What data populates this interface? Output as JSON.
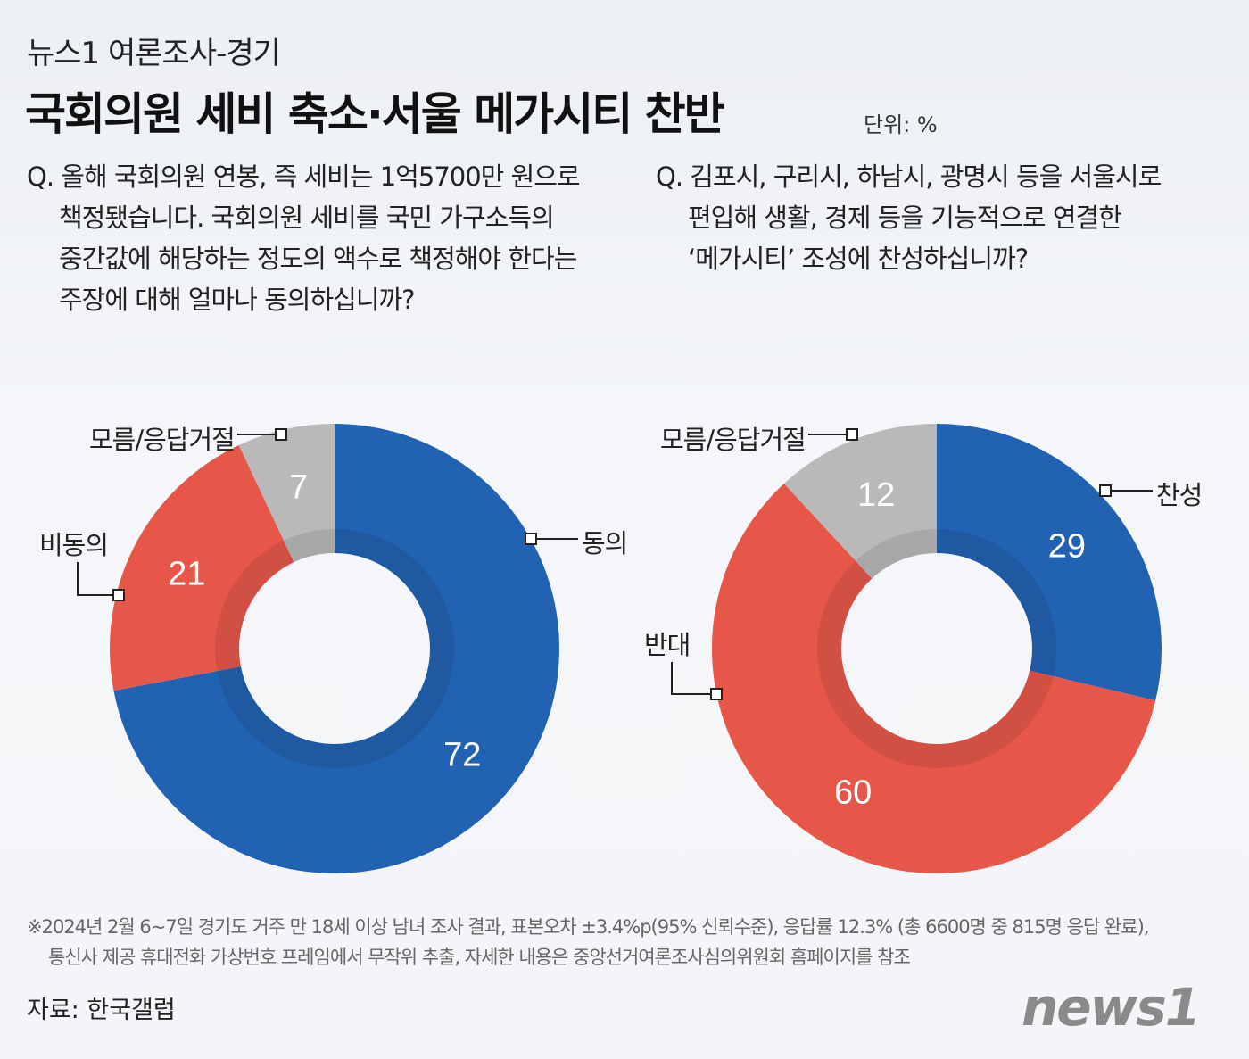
{
  "header": {
    "kicker": "뉴스1 여론조사-경기",
    "title": "국회의원 세비 축소·서울 메가시티 찬반",
    "unit": "단위: %"
  },
  "questions": [
    {
      "lines": [
        "Q. 올해 국회의원 연봉, 즉 세비는 1억5700만 원으로",
        "책정됐습니다. 국회의원 세비를 국민 가구소득의",
        "중간값에 해당하는 정도의 액수로 책정해야 한다는",
        "주장에 대해 얼마나 동의하십니까?"
      ]
    },
    {
      "lines": [
        "Q. 김포시, 구리시, 하남시, 광명시 등을 서울시로",
        "편입해 생활, 경제 등을 기능적으로 연결한",
        "‘메가시티’ 조성에 찬성하십니까?"
      ]
    }
  ],
  "chart_data": [
    {
      "type": "pie",
      "donut": true,
      "start": "top",
      "direction": "clockwise",
      "categories": [
        "동의",
        "비동의",
        "모름/응답거절"
      ],
      "values": [
        72,
        21,
        7
      ],
      "colors": [
        "#2162b3",
        "#e6574a",
        "#b9b9b9"
      ]
    },
    {
      "type": "pie",
      "donut": true,
      "start": "top",
      "direction": "clockwise",
      "categories": [
        "찬성",
        "반대",
        "모름/응답거절"
      ],
      "values": [
        29,
        60,
        12
      ],
      "colors": [
        "#2162b3",
        "#e6574a",
        "#b9b9b9"
      ]
    }
  ],
  "footnote": {
    "line1": "※2024년 2월 6~7일 경기도 거주 만 18세 이상 남녀 조사 결과, 표본오차 ±3.4%p(95% 신뢰수준), 응답률 12.3% (총 6600명 중 815명 응답 완료),",
    "line2": "통신사 제공 휴대전화 가상번호 프레임에서 무작위 추출, 자세한 내용은 중앙선거여론조사심의위원회 홈페이지를 참조"
  },
  "source": "자료: 한국갤럽",
  "logo": "news1"
}
